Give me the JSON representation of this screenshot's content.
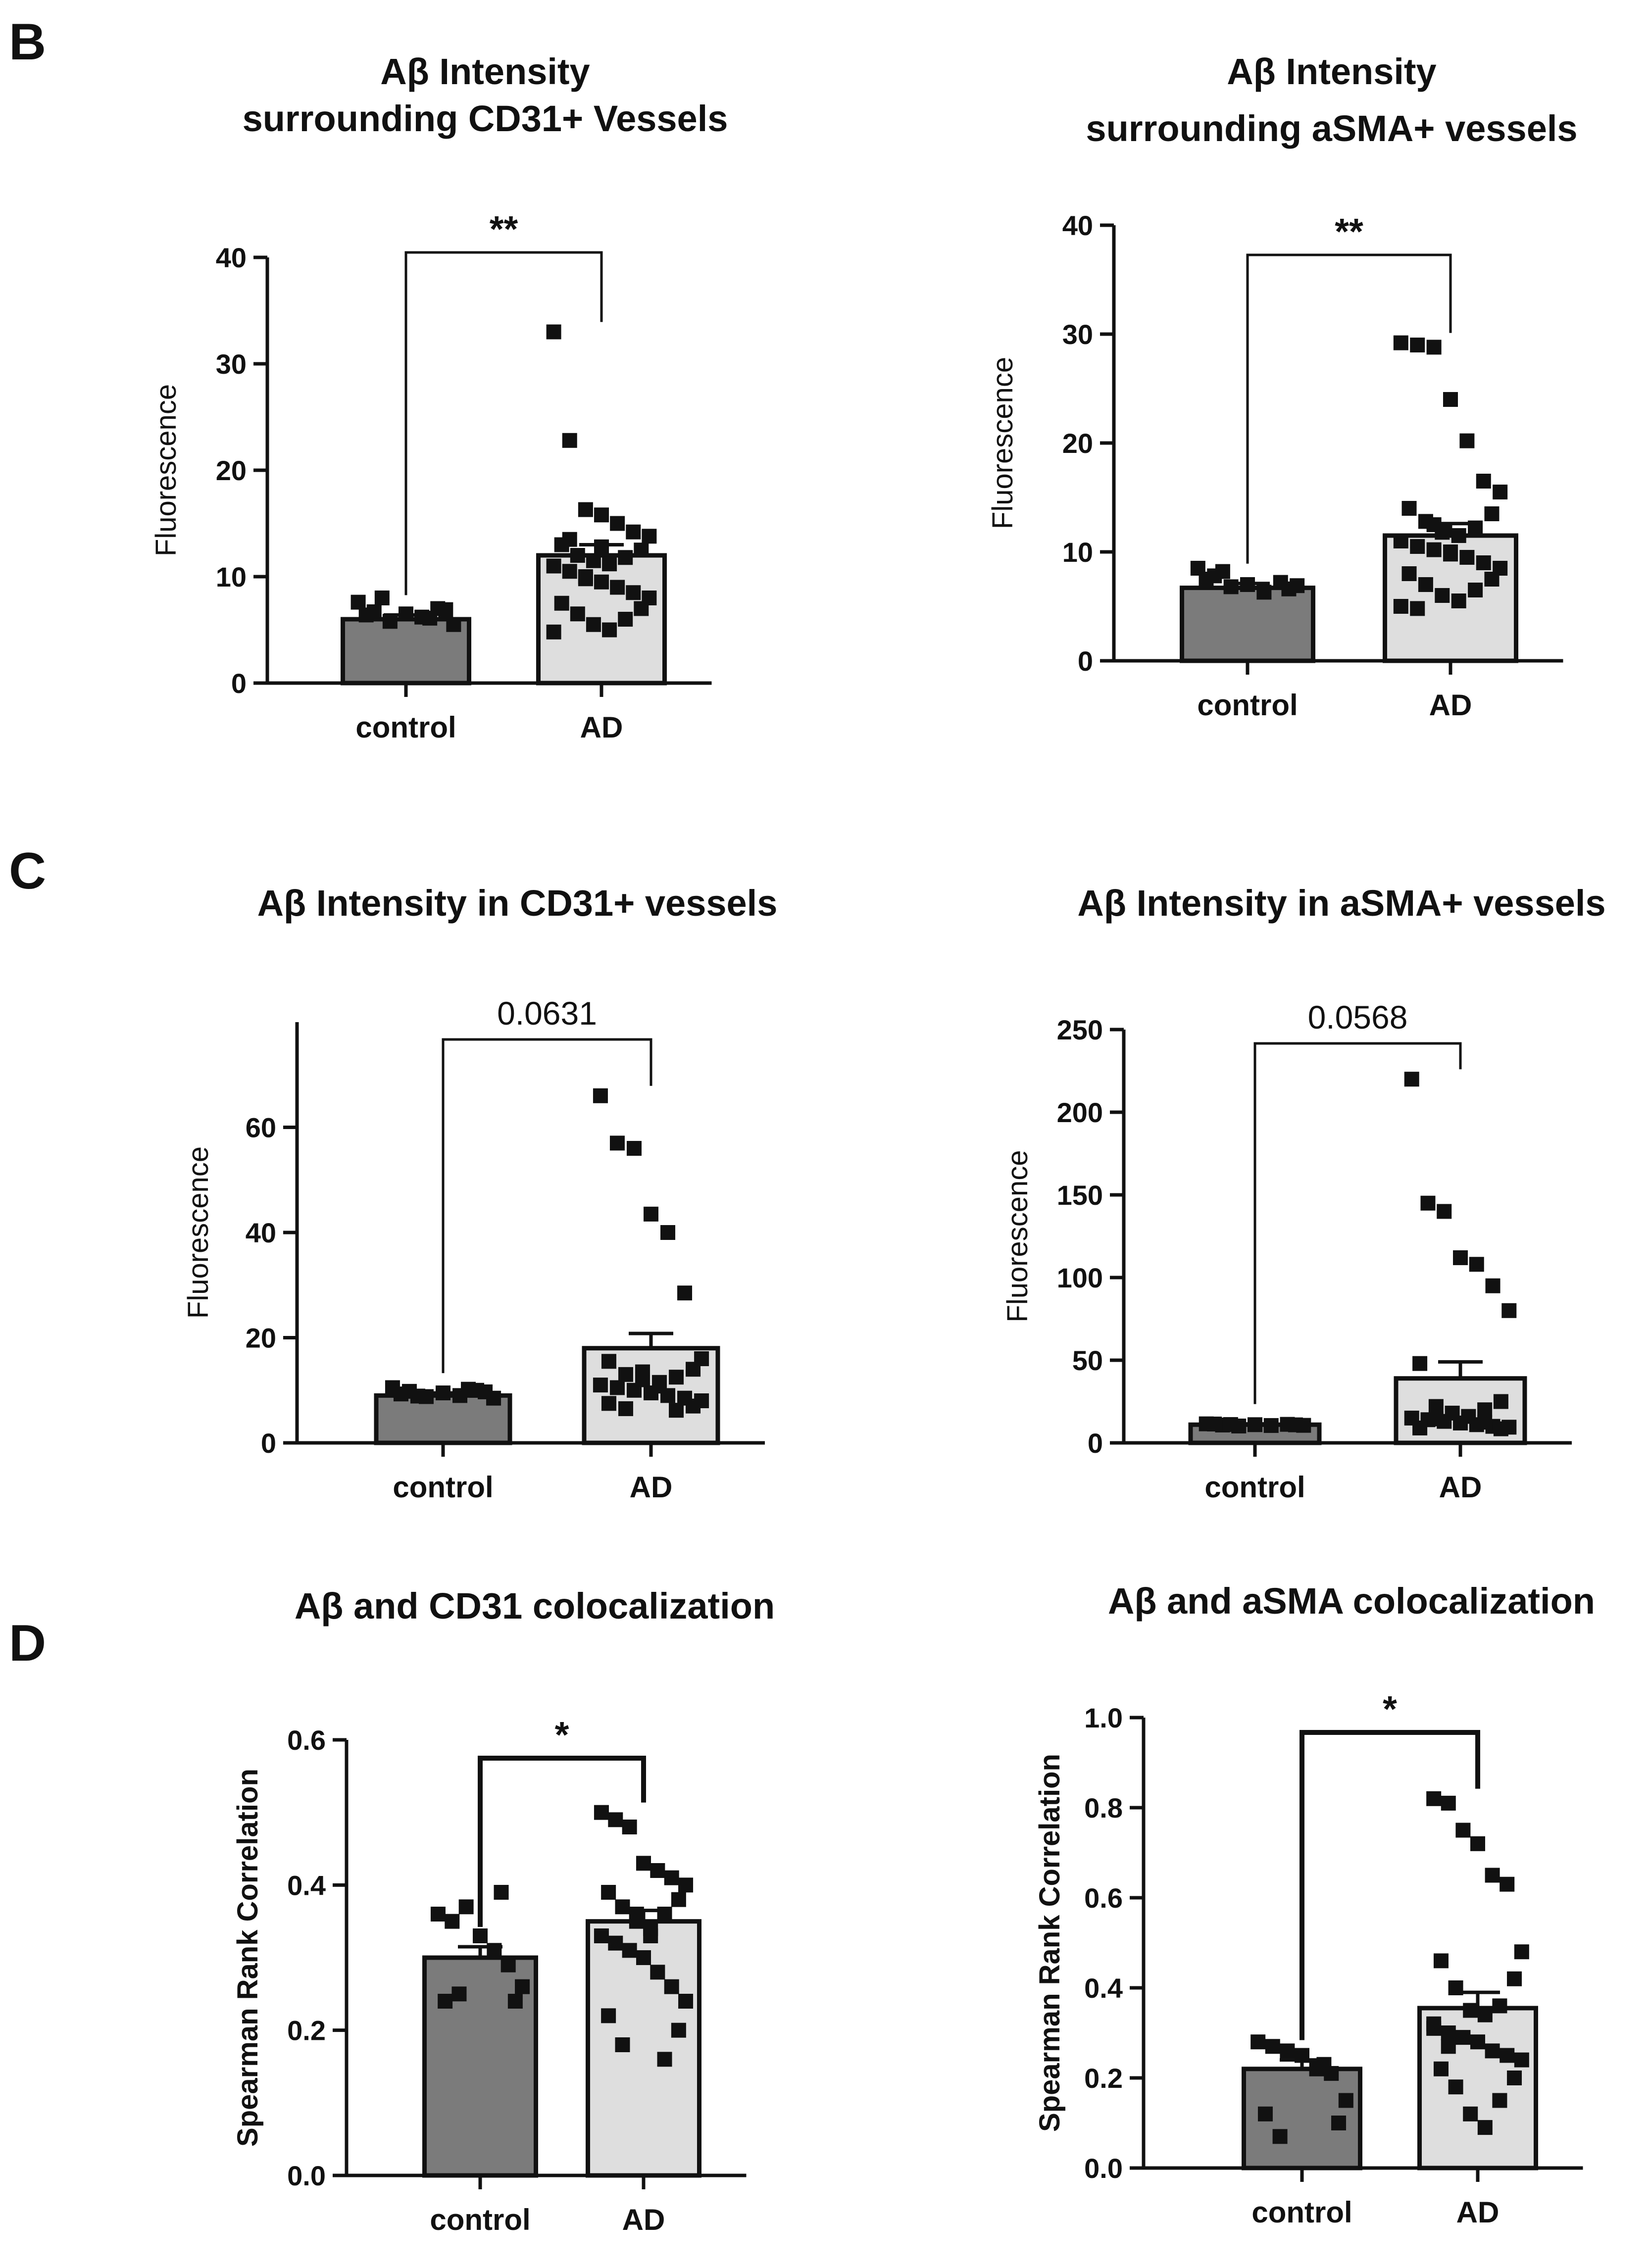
{
  "panels": [
    {
      "letter": "B"
    },
    {
      "letter": "C"
    },
    {
      "letter": "D"
    }
  ],
  "chart_data": [
    {
      "type": "bar",
      "panel": "B",
      "title": [
        "Aβ Intensity",
        "surrounding CD31+ Vessels"
      ],
      "ylabel": "Fluorescence",
      "categories": [
        "control",
        "AD"
      ],
      "ylim": [
        0,
        40
      ],
      "yticks": [
        0,
        10,
        20,
        30,
        40
      ],
      "values": [
        6.0,
        12.0
      ],
      "sem": [
        0.4,
        1.0
      ],
      "colors": [
        "#7b7b7b",
        "#dedede"
      ],
      "significance": "**",
      "points": [
        [
          7.6,
          6.7,
          5.8,
          6.5,
          6.2,
          7.0,
          5.5,
          6.4,
          6.9,
          8.0,
          6.1
        ],
        [
          33.0,
          22.8,
          16.3,
          15.8,
          15.0,
          14.2,
          13.8,
          13.0,
          12.5,
          12.0,
          11.8,
          11.5,
          11.2,
          11.0,
          10.5,
          10.0,
          9.5,
          9.0,
          8.5,
          8.0,
          7.5,
          7.0,
          6.5,
          6.0,
          5.5,
          5.0,
          4.8,
          13.5,
          9.8,
          12.8
        ]
      ]
    },
    {
      "type": "bar",
      "panel": "B",
      "title": [
        "Aβ Intensity",
        "surrounding aSMA+ vessels"
      ],
      "ylabel": "Fluorescence",
      "categories": [
        "control",
        "AD"
      ],
      "ylim": [
        0,
        40
      ],
      "yticks": [
        0,
        10,
        20,
        30,
        40
      ],
      "values": [
        6.7,
        11.5
      ],
      "sem": [
        0.4,
        1.1
      ],
      "colors": [
        "#7b7b7b",
        "#dedede"
      ],
      "significance": "**",
      "points": [
        [
          8.5,
          7.8,
          6.8,
          7.0,
          6.3,
          7.2,
          6.9,
          7.5,
          6.6,
          8.2
        ],
        [
          29.2,
          29.0,
          28.8,
          24.0,
          20.2,
          16.5,
          15.5,
          14.0,
          13.5,
          12.8,
          12.2,
          11.8,
          11.5,
          11.0,
          10.5,
          10.2,
          10.0,
          9.5,
          9.0,
          8.5,
          8.0,
          7.5,
          7.0,
          6.5,
          6.0,
          5.5,
          5.0,
          4.8,
          12.5,
          9.8
        ]
      ]
    },
    {
      "type": "bar",
      "panel": "C",
      "title": [
        "Aβ Intensity in CD31+ vessels"
      ],
      "ylabel": "Fluorescence",
      "categories": [
        "control",
        "AD"
      ],
      "ylim": [
        0,
        80
      ],
      "yticks": [
        0,
        20,
        40,
        60
      ],
      "values": [
        9.0,
        18.0
      ],
      "sem": [
        0.5,
        2.8
      ],
      "colors": [
        "#7b7b7b",
        "#dedede"
      ],
      "significance": "0.0631",
      "points": [
        [
          10.5,
          9.8,
          8.8,
          9.5,
          9.0,
          10.0,
          8.5,
          9.3,
          9.7,
          8.9,
          10.2
        ],
        [
          66.0,
          57.0,
          56.0,
          43.5,
          40.0,
          28.5,
          16.0,
          15.5,
          14.0,
          13.0,
          12.5,
          12.0,
          11.5,
          11.0,
          10.5,
          10.0,
          9.5,
          9.0,
          8.5,
          8.0,
          7.5,
          7.0,
          6.5,
          6.2,
          13.5,
          10.8
        ]
      ]
    },
    {
      "type": "bar",
      "panel": "C",
      "title": [
        "Aβ Intensity in aSMA+ vessels"
      ],
      "ylabel": "Fluorescence",
      "categories": [
        "control",
        "AD"
      ],
      "ylim": [
        0,
        250
      ],
      "yticks": [
        0,
        50,
        100,
        150,
        200,
        250
      ],
      "values": [
        11.0,
        39.0
      ],
      "sem": [
        0.5,
        10.0
      ],
      "colors": [
        "#7b7b7b",
        "#dedede"
      ],
      "significance": "0.0568",
      "points": [
        [
          11.5,
          10.8,
          10.2,
          11.0,
          10.5,
          11.2,
          10.6,
          11.4,
          10.9,
          11.1
        ],
        [
          220.0,
          145.0,
          140.0,
          112.0,
          108.0,
          95.0,
          80.0,
          48.0,
          25.0,
          22.0,
          20.0,
          18.0,
          16.0,
          15.0,
          14.0,
          13.0,
          12.0,
          11.0,
          10.0,
          9.5,
          9.0,
          8.5,
          14.5,
          12.5
        ]
      ]
    },
    {
      "type": "bar",
      "panel": "D",
      "title": [
        "Aβ and CD31 colocalization"
      ],
      "ylabel": "Spearman Rank Correlation",
      "categories": [
        "control",
        "AD"
      ],
      "ylim": [
        0,
        0.6
      ],
      "yticks": [
        0.0,
        0.2,
        0.4,
        0.6
      ],
      "yticklabels": [
        "0.0",
        "0.2",
        "0.4",
        "0.6"
      ],
      "values": [
        0.3,
        0.35
      ],
      "sem": [
        0.015,
        0.015
      ],
      "colors": [
        "#7b7b7b",
        "#dedede"
      ],
      "significance": "*",
      "points": [
        [
          0.36,
          0.35,
          0.37,
          0.33,
          0.31,
          0.29,
          0.26,
          0.24,
          0.24,
          0.25,
          0.39
        ],
        [
          0.5,
          0.49,
          0.48,
          0.43,
          0.42,
          0.41,
          0.4,
          0.39,
          0.38,
          0.37,
          0.36,
          0.35,
          0.34,
          0.33,
          0.32,
          0.31,
          0.3,
          0.28,
          0.26,
          0.24,
          0.22,
          0.2,
          0.18,
          0.16,
          0.36,
          0.33
        ]
      ]
    },
    {
      "type": "bar",
      "panel": "D",
      "title": [
        "Aβ and aSMA colocalization"
      ],
      "ylabel": "Spearman Rank Correlation",
      "categories": [
        "control",
        "AD"
      ],
      "ylim": [
        0,
        1.0
      ],
      "yticks": [
        0.0,
        0.2,
        0.4,
        0.6,
        0.8,
        1.0
      ],
      "yticklabels": [
        "0.0",
        "0.2",
        "0.4",
        "0.6",
        "0.8",
        "1.0"
      ],
      "values": [
        0.22,
        0.355
      ],
      "sem": [
        0.02,
        0.035
      ],
      "colors": [
        "#7b7b7b",
        "#dedede"
      ],
      "significance": "*",
      "points": [
        [
          0.28,
          0.27,
          0.26,
          0.25,
          0.22,
          0.21,
          0.15,
          0.12,
          0.1,
          0.07,
          0.23
        ],
        [
          0.82,
          0.81,
          0.75,
          0.72,
          0.65,
          0.63,
          0.48,
          0.46,
          0.42,
          0.4,
          0.36,
          0.35,
          0.34,
          0.32,
          0.3,
          0.29,
          0.28,
          0.26,
          0.25,
          0.24,
          0.22,
          0.2,
          0.18,
          0.15,
          0.12,
          0.09,
          0.31,
          0.27
        ]
      ]
    }
  ]
}
